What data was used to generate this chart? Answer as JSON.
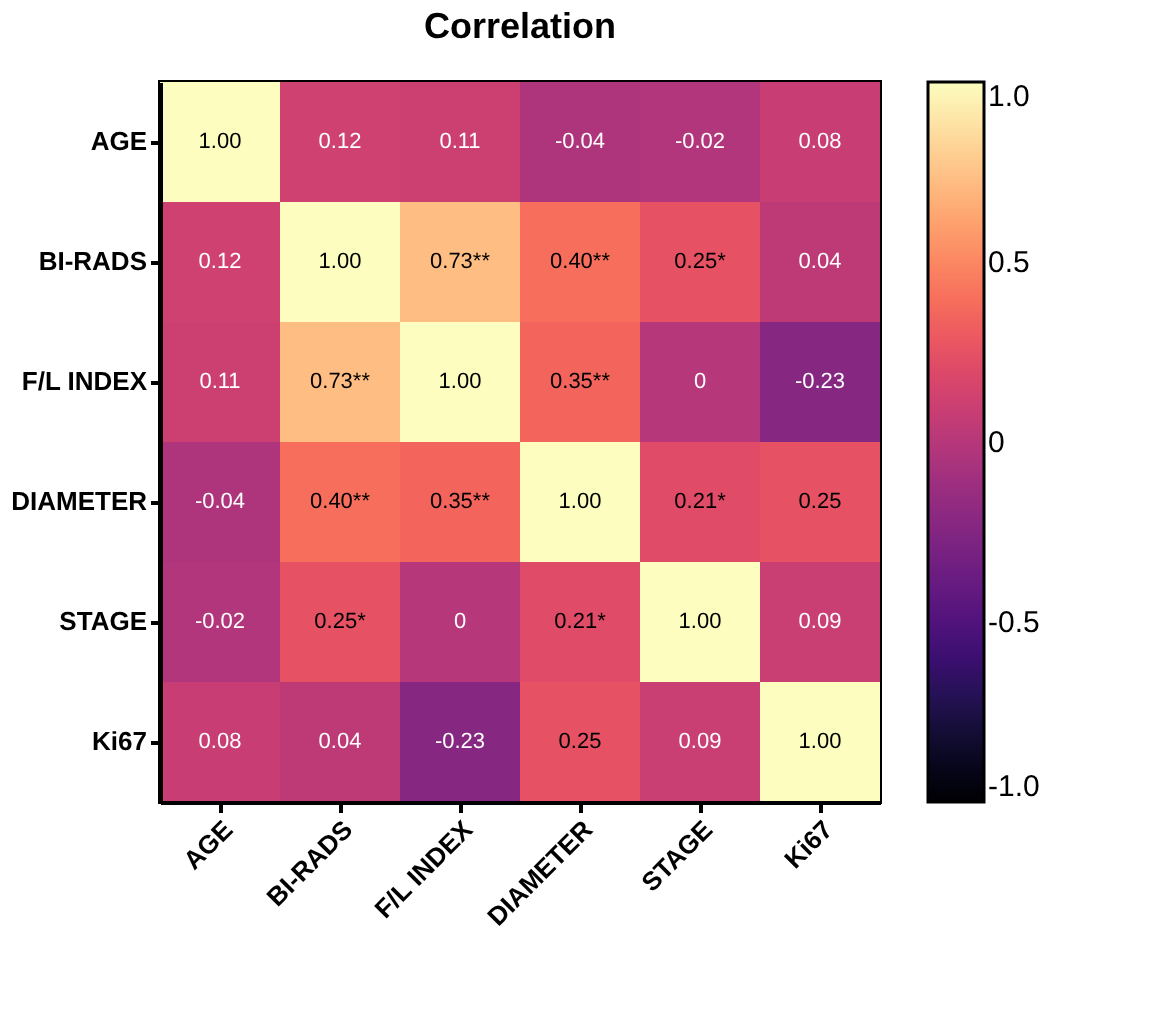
{
  "chart_data": {
    "type": "heatmap",
    "title": "Correlation",
    "categories": [
      "AGE",
      "BI-RADS",
      "F/L INDEX",
      "DIAMETER",
      "STAGE",
      "Ki67"
    ],
    "y_categories": [
      "AGE",
      "BI-RADS",
      "F/L INDEX",
      "DIAMETER",
      "STAGE",
      "Ki67"
    ],
    "cells": [
      [
        1.0,
        0.12,
        0.11,
        -0.04,
        -0.02,
        0.08
      ],
      [
        0.12,
        1.0,
        0.73,
        0.4,
        0.25,
        0.04
      ],
      [
        0.11,
        0.73,
        1.0,
        0.35,
        0,
        -0.23
      ],
      [
        -0.04,
        0.4,
        0.35,
        1.0,
        0.21,
        0.25
      ],
      [
        -0.02,
        0.25,
        0,
        0.21,
        1.0,
        0.09
      ],
      [
        0.08,
        0.04,
        -0.23,
        0.25,
        0.09,
        1.0
      ]
    ],
    "cell_labels": [
      [
        "1.00",
        "0.12",
        "0.11",
        "-0.04",
        "-0.02",
        "0.08"
      ],
      [
        "0.12",
        "1.00",
        "0.73**",
        "0.40**",
        "0.25*",
        "0.04"
      ],
      [
        "0.11",
        "0.73**",
        "1.00",
        "0.35**",
        "0",
        "-0.23"
      ],
      [
        "-0.04",
        "0.40**",
        "0.35**",
        "1.00",
        "0.21*",
        "0.25"
      ],
      [
        "-0.02",
        "0.25*",
        "0",
        "0.21*",
        "1.00",
        "0.09"
      ],
      [
        "0.08",
        "0.04",
        "-0.23",
        "0.25",
        "0.09",
        "1.00"
      ]
    ],
    "clim": [
      -1,
      1
    ],
    "cticks": [
      {
        "value": 1,
        "label": "1.0"
      },
      {
        "value": 0.5,
        "label": "0.5"
      },
      0,
      {
        "value": -0.5,
        "label": "-0.5"
      },
      {
        "value": -1,
        "label": "-1.0"
      }
    ]
  }
}
